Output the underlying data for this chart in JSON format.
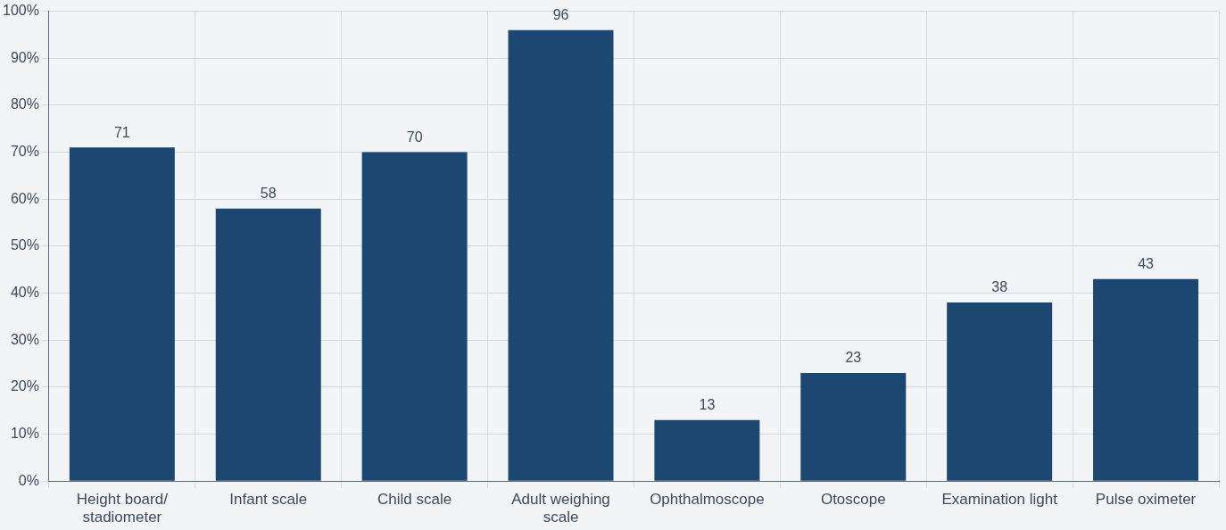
{
  "chart_data": {
    "type": "bar",
    "categories": [
      "Height board/\nstadiometer",
      "Infant scale",
      "Child scale",
      "Adult weighing\nscale",
      "Ophthalmoscope",
      "Otoscope",
      "Examination light",
      "Pulse oximeter"
    ],
    "values": [
      71,
      58,
      70,
      96,
      13,
      23,
      38,
      43
    ],
    "color": "#1c4770",
    "ylim": [
      0,
      100
    ],
    "yticks": [
      {
        "value": 0,
        "label": "0%"
      },
      {
        "value": 10,
        "label": "10%"
      },
      {
        "value": 20,
        "label": "20%"
      },
      {
        "value": 30,
        "label": "30%"
      },
      {
        "value": 40,
        "label": "40%"
      },
      {
        "value": 50,
        "label": "50%"
      },
      {
        "value": 60,
        "label": "60%"
      },
      {
        "value": 70,
        "label": "70%"
      },
      {
        "value": 80,
        "label": "80%"
      },
      {
        "value": 90,
        "label": "90%"
      },
      {
        "value": 100,
        "label": "100%"
      }
    ],
    "grid": true,
    "data_labels": true
  }
}
